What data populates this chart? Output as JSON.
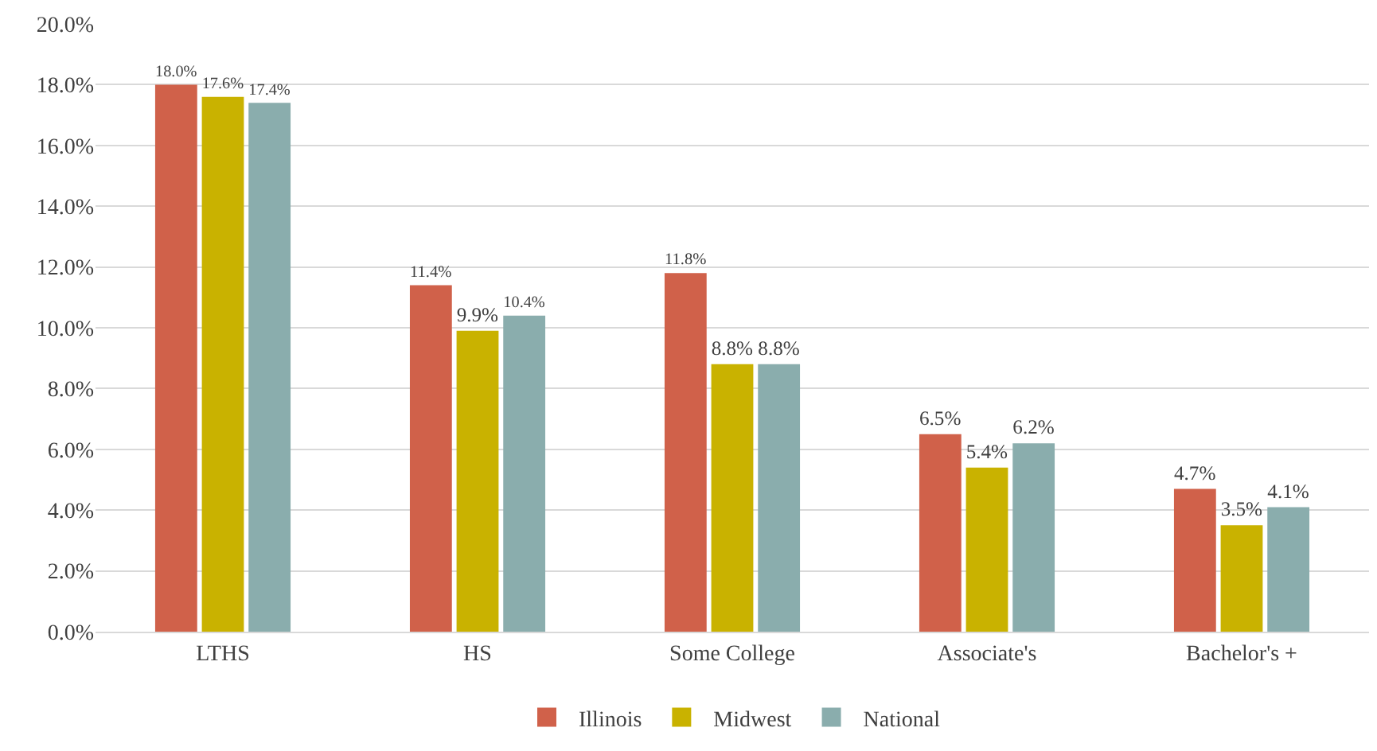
{
  "chart_data": {
    "type": "bar",
    "categories": [
      "LTHS",
      "HS",
      "Some College",
      "Associate's",
      "Bachelor's +"
    ],
    "series": [
      {
        "name": "Illinois",
        "color": "#d0614a",
        "values": [
          18.0,
          11.4,
          11.8,
          6.5,
          4.7
        ],
        "value_labels": [
          "18.0%",
          "11.4%",
          "11.8%",
          "6.5%",
          "4.7%"
        ]
      },
      {
        "name": "Midwest",
        "color": "#c9b200",
        "values": [
          17.6,
          9.9,
          8.8,
          5.4,
          3.5
        ],
        "value_labels": [
          "17.6%",
          "9.9%",
          "8.8%",
          "5.4%",
          "3.5%"
        ]
      },
      {
        "name": "National",
        "color": "#8aadad",
        "values": [
          17.4,
          10.4,
          8.8,
          6.2,
          4.1
        ],
        "value_labels": [
          "17.4%",
          "10.4%",
          "8.8%",
          "6.2%",
          "4.1%"
        ]
      }
    ],
    "ylim": [
      0,
      20
    ],
    "yticks": [
      {
        "value": 0,
        "label": "0.0%"
      },
      {
        "value": 2,
        "label": "2.0%"
      },
      {
        "value": 4,
        "label": "4.0%"
      },
      {
        "value": 6,
        "label": "6.0%"
      },
      {
        "value": 8,
        "label": "8.0%"
      },
      {
        "value": 10,
        "label": "10.0%"
      },
      {
        "value": 12,
        "label": "12.0%"
      },
      {
        "value": 14,
        "label": "14.0%"
      },
      {
        "value": 16,
        "label": "16.0%"
      },
      {
        "value": 18,
        "label": "18.0%"
      },
      {
        "value": 20,
        "label": "20.0%"
      }
    ],
    "grid": "y",
    "legend": "bottom"
  }
}
